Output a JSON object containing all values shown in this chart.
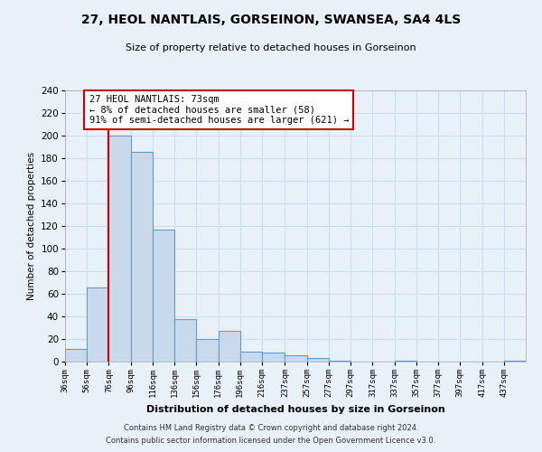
{
  "title": "27, HEOL NANTLAIS, GORSEINON, SWANSEA, SA4 4LS",
  "subtitle": "Size of property relative to detached houses in Gorseinon",
  "xlabel": "Distribution of detached houses by size in Gorseinon",
  "ylabel": "Number of detached properties",
  "bin_labels": [
    "36sqm",
    "56sqm",
    "76sqm",
    "96sqm",
    "116sqm",
    "136sqm",
    "156sqm",
    "176sqm",
    "196sqm",
    "216sqm",
    "237sqm",
    "257sqm",
    "277sqm",
    "297sqm",
    "317sqm",
    "337sqm",
    "357sqm",
    "377sqm",
    "397sqm",
    "417sqm",
    "437sqm"
  ],
  "bin_edges": [
    36,
    56,
    76,
    96,
    116,
    136,
    156,
    176,
    196,
    216,
    237,
    257,
    277,
    297,
    317,
    337,
    357,
    377,
    397,
    417,
    437
  ],
  "bar_heights": [
    11,
    66,
    200,
    186,
    117,
    38,
    20,
    27,
    9,
    8,
    6,
    3,
    1,
    0,
    0,
    1,
    0,
    0,
    0,
    0,
    1
  ],
  "bar_color": "#c8d9ec",
  "bar_edge_color": "#6699cc",
  "property_line_x": 76,
  "annotation_title": "27 HEOL NANTLAIS: 73sqm",
  "annotation_line1": "← 8% of detached houses are smaller (58)",
  "annotation_line2": "91% of semi-detached houses are larger (621) →",
  "annotation_box_color": "#ffffff",
  "annotation_box_edge_color": "#cc0000",
  "property_vline_color": "#cc0000",
  "ylim": [
    0,
    240
  ],
  "yticks": [
    0,
    20,
    40,
    60,
    80,
    100,
    120,
    140,
    160,
    180,
    200,
    220,
    240
  ],
  "grid_color": "#ccddee",
  "background_color": "#e8f0f8",
  "axes_background_color": "#e8f0f8",
  "footnote1": "Contains HM Land Registry data © Crown copyright and database right 2024.",
  "footnote2": "Contains public sector information licensed under the Open Government Licence v3.0."
}
